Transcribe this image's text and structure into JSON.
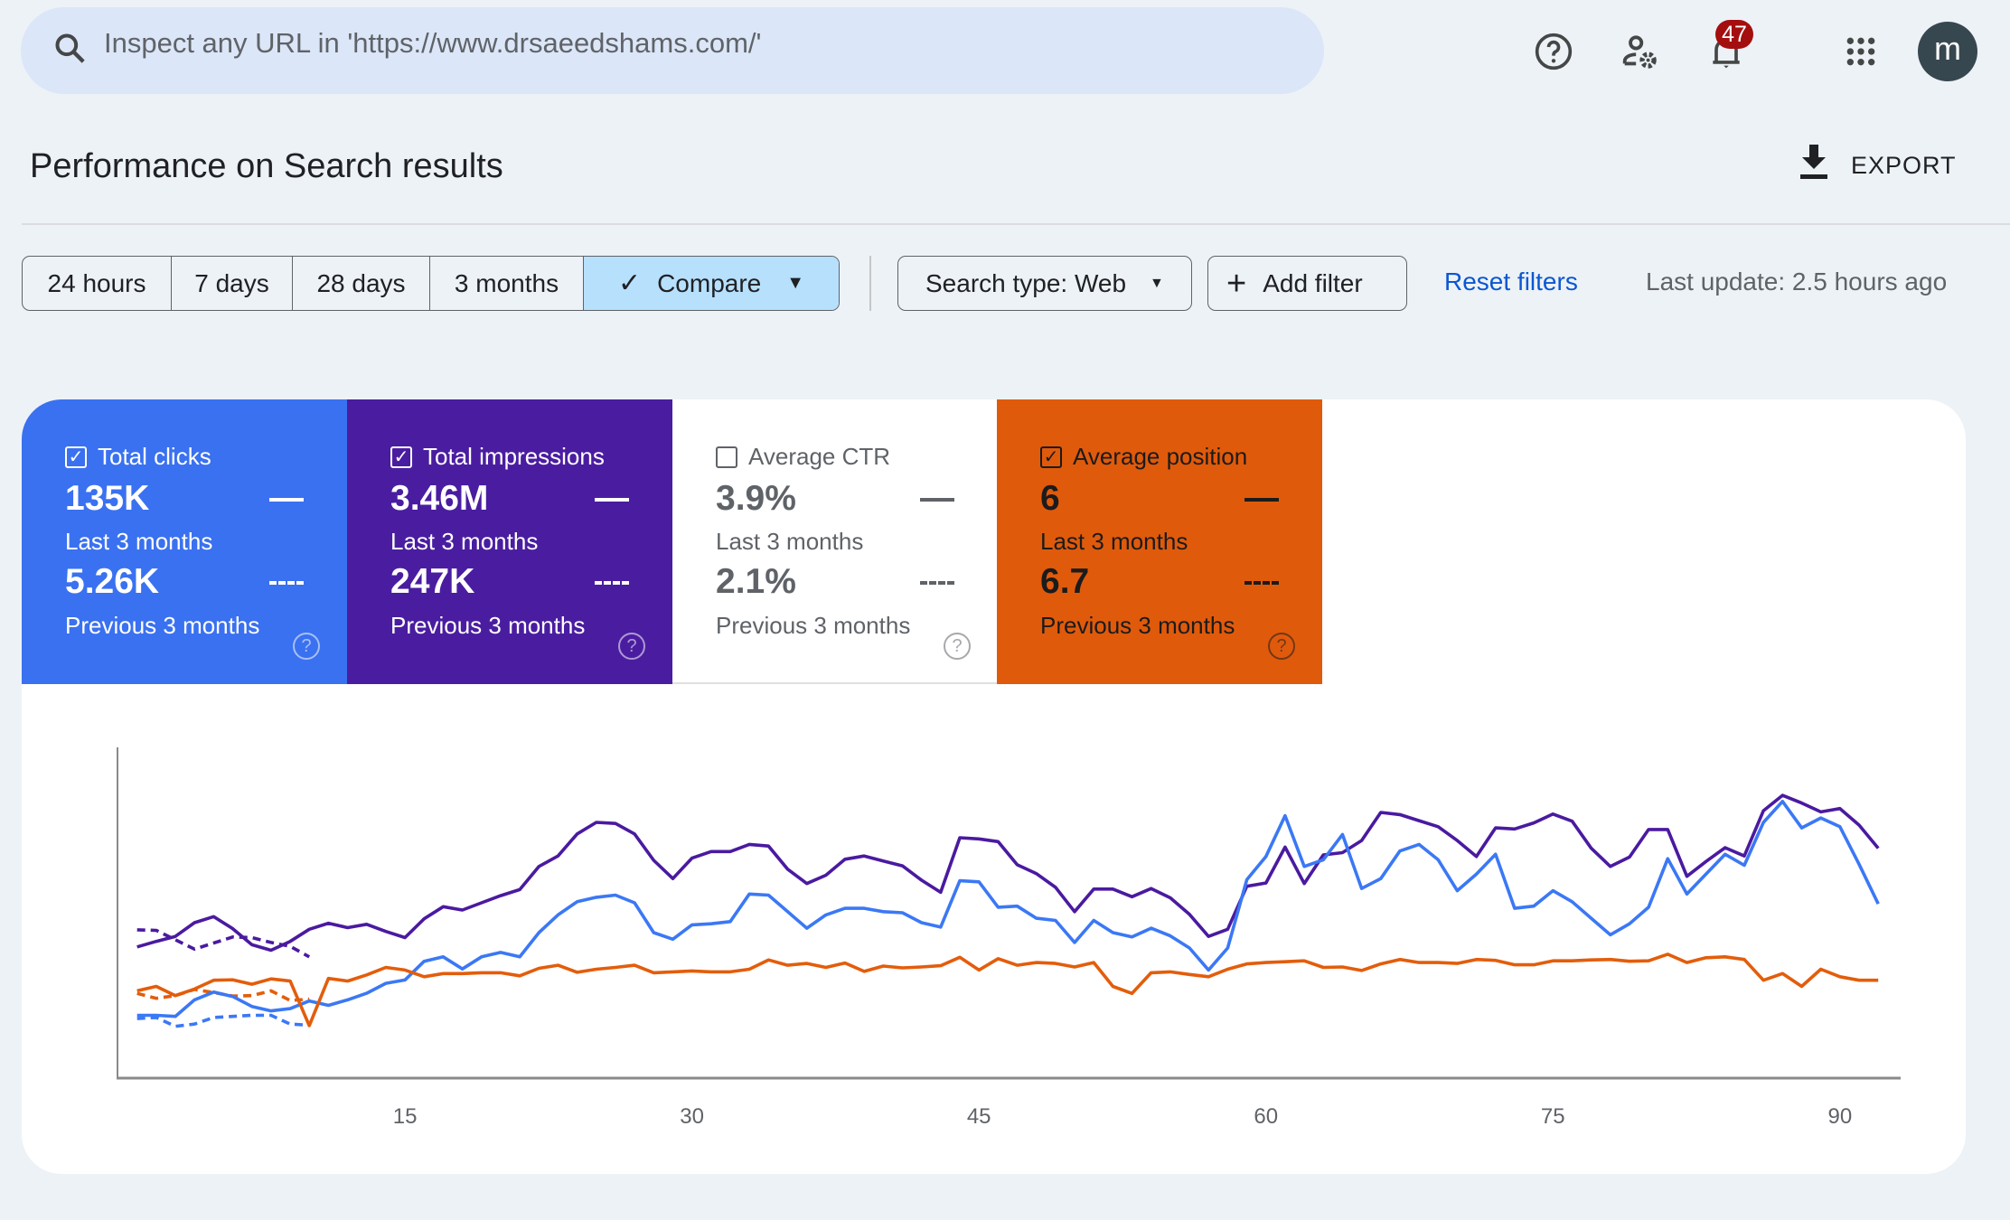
{
  "search": {
    "placeholder": "Inspect any URL in 'https://www.drsaeedshams.com/'"
  },
  "topbar": {
    "notification_count": "47",
    "avatar_letter": "m",
    "icons": [
      "help-icon",
      "admin-settings-icon",
      "notifications-bell-icon",
      "apps-grid-icon"
    ]
  },
  "header": {
    "title": "Performance on Search results",
    "export_label": "EXPORT"
  },
  "filters": {
    "date_ranges": [
      "24 hours",
      "7 days",
      "28 days",
      "3 months"
    ],
    "compare_label": "Compare",
    "search_type_label": "Search type: Web",
    "add_filter_label": "Add filter",
    "reset_label": "Reset filters",
    "last_update": "Last update: 2.5 hours ago"
  },
  "metrics": [
    {
      "label": "Total clicks",
      "checked": true,
      "value": "135K",
      "period": "Last 3 months",
      "prev_value": "5.26K",
      "prev_period": "Previous 3 months",
      "bg": "#3a71f0",
      "fg": "#ffffff"
    },
    {
      "label": "Total impressions",
      "checked": true,
      "value": "3.46M",
      "period": "Last 3 months",
      "prev_value": "247K",
      "prev_period": "Previous 3 months",
      "bg": "#4a1da0",
      "fg": "#ffffff"
    },
    {
      "label": "Average CTR",
      "checked": false,
      "value": "3.9%",
      "period": "Last 3 months",
      "prev_value": "2.1%",
      "prev_period": "Previous 3 months",
      "bg": "#ffffff",
      "fg": "#5f6368"
    },
    {
      "label": "Average position",
      "checked": true,
      "value": "6",
      "period": "Last 3 months",
      "prev_value": "6.7",
      "prev_period": "Previous 3 months",
      "bg": "#e05a0c",
      "fg": "#1b1b1b"
    }
  ],
  "chart_data": {
    "type": "line",
    "x_range": [
      1,
      92
    ],
    "x_ticks": [
      15,
      30,
      45,
      60,
      75,
      90
    ],
    "grid": false,
    "series": [
      {
        "name": "Total impressions",
        "period": "Last 3 months",
        "color": "#4a1aa0",
        "style": "solid",
        "ylim": [
          0,
          60000
        ],
        "values": [
          23800,
          24800,
          25700,
          28200,
          29300,
          27100,
          24200,
          23200,
          24800,
          27000,
          28100,
          27300,
          27900,
          26600,
          25500,
          28900,
          31100,
          30500,
          31800,
          33100,
          34200,
          38400,
          40300,
          44300,
          46400,
          46200,
          44300,
          39500,
          36200,
          39900,
          41100,
          41100,
          42400,
          42100,
          37900,
          35300,
          36800,
          39700,
          40300,
          39400,
          38500,
          35900,
          33700,
          43600,
          43400,
          42900,
          38700,
          37100,
          34600,
          30200,
          34300,
          34300,
          32900,
          34400,
          32700,
          29700,
          25700,
          27000,
          34800,
          35400,
          41900,
          35300,
          40500,
          40900,
          43100,
          48200,
          47800,
          46700,
          45600,
          43100,
          40200,
          45400,
          45200,
          46300,
          47900,
          46600,
          41700,
          38400,
          40100,
          45100,
          45100,
          36600,
          39300,
          41800,
          40300,
          48500,
          51300,
          49900,
          48300,
          48900,
          45900,
          41700
        ]
      },
      {
        "name": "Total clicks",
        "period": "Last 3 months",
        "color": "#3b78f5",
        "style": "solid",
        "ylim": [
          0,
          3000
        ],
        "values": [
          570,
          570,
          560,
          710,
          780,
          740,
          650,
          610,
          630,
          700,
          660,
          710,
          770,
          860,
          890,
          1060,
          1100,
          990,
          1100,
          1140,
          1100,
          1320,
          1480,
          1600,
          1640,
          1660,
          1590,
          1320,
          1260,
          1390,
          1400,
          1420,
          1670,
          1660,
          1510,
          1360,
          1480,
          1540,
          1540,
          1510,
          1500,
          1410,
          1370,
          1790,
          1780,
          1550,
          1560,
          1450,
          1430,
          1230,
          1430,
          1320,
          1280,
          1360,
          1290,
          1180,
          980,
          1180,
          1800,
          2010,
          2380,
          1920,
          1980,
          2210,
          1720,
          1810,
          2060,
          2120,
          1980,
          1700,
          1850,
          2030,
          1540,
          1560,
          1700,
          1600,
          1450,
          1300,
          1400,
          1550,
          1990,
          1670,
          1850,
          2030,
          1930,
          2320,
          2510,
          2270,
          2360,
          2280,
          1940,
          1580
        ]
      },
      {
        "name": "Average position",
        "period": "Last 3 months",
        "color": "#e35d0b",
        "style": "solid",
        "ylim": [
          8.5,
          1
        ],
        "values": [
          6.52,
          6.42,
          6.63,
          6.48,
          6.28,
          6.27,
          6.37,
          6.25,
          6.3,
          7.31,
          6.24,
          6.3,
          6.16,
          5.99,
          6.05,
          6.2,
          6.13,
          6.13,
          6.11,
          6.11,
          6.18,
          6.01,
          5.94,
          6.1,
          6.03,
          5.99,
          5.94,
          6.11,
          6.09,
          6.07,
          6.09,
          6.09,
          6.03,
          5.82,
          5.94,
          5.9,
          5.99,
          5.89,
          6.08,
          5.96,
          6.0,
          5.98,
          5.95,
          5.76,
          6.05,
          5.79,
          5.94,
          5.88,
          5.9,
          5.98,
          5.88,
          6.42,
          6.58,
          6.11,
          6.09,
          6.15,
          6.2,
          6.03,
          5.91,
          5.88,
          5.86,
          5.84,
          5.99,
          5.98,
          6.06,
          5.91,
          5.81,
          5.88,
          5.88,
          5.9,
          5.81,
          5.83,
          5.93,
          5.93,
          5.84,
          5.84,
          5.82,
          5.81,
          5.85,
          5.84,
          5.69,
          5.88,
          5.77,
          5.75,
          5.81,
          6.28,
          6.13,
          6.42,
          6.03,
          6.2,
          6.28,
          6.28
        ]
      },
      {
        "name": "Total impressions",
        "period": "Previous 3 months",
        "color": "#4a1aa0",
        "style": "dashed",
        "ylim": [
          0,
          60000
        ],
        "values": [
          26900,
          26800,
          25100,
          23400,
          24500,
          25600,
          25500,
          24600,
          23900,
          22000
        ]
      },
      {
        "name": "Total clicks",
        "period": "Previous 3 months",
        "color": "#3b78f5",
        "style": "dashed",
        "ylim": [
          0,
          3000
        ],
        "values": [
          540,
          550,
          470,
          490,
          550,
          560,
          570,
          570,
          490,
          480
        ]
      },
      {
        "name": "Average position",
        "period": "Previous 3 months",
        "color": "#e35d0b",
        "style": "dashed",
        "ylim": [
          8.5,
          1
        ],
        "values": [
          6.58,
          6.69,
          6.63,
          6.49,
          6.56,
          6.64,
          6.63,
          6.52,
          6.74,
          6.71
        ]
      }
    ]
  }
}
